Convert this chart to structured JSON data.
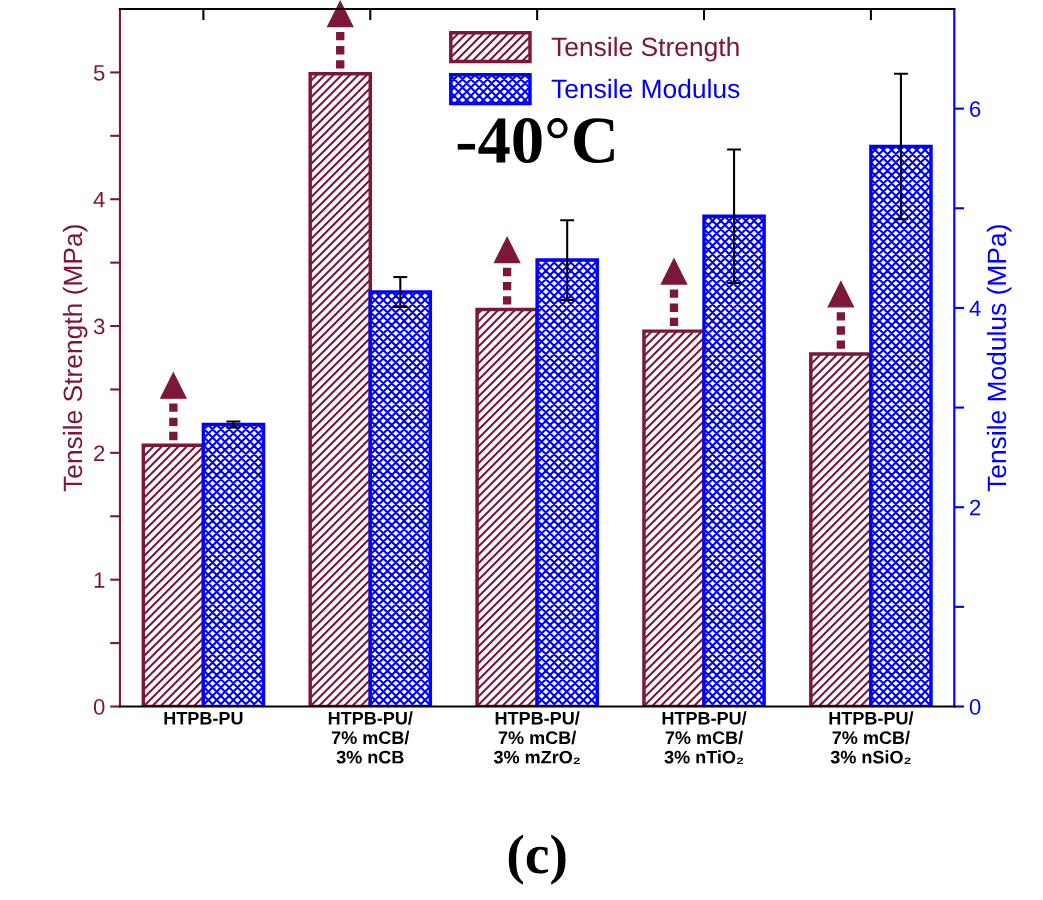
{
  "chart_data": {
    "type": "bar",
    "categories": [
      "HTPB-PU",
      "HTPB-PU/\n7% mCB/\n3% nCB",
      "HTPB-PU/\n7% mCB/\n3% mZrO₂",
      "HTPB-PU/\n7% mCB/\n3% nTiO₂",
      "HTPB-PU/\n7% mCB/\n3% nSiO₂"
    ],
    "series": [
      {
        "name": "Tensile Strength",
        "color": "#7b1838",
        "values": [
          2.06,
          4.99,
          3.13,
          2.96,
          2.78
        ]
      },
      {
        "name": "Tensile Modulus",
        "color": "#0000ff",
        "axis": "y2",
        "values": [
          2.83,
          4.16,
          4.48,
          4.92,
          5.62
        ],
        "errors": [
          0.03,
          0.15,
          0.4,
          0.67,
          0.73
        ]
      }
    ],
    "ylabel": "Tensile Strength (MPa)",
    "y2label": "Tensile Modulus (MPa)",
    "ylim": [
      0,
      5.5
    ],
    "yticks": [
      0,
      {
        "value": 0.5,
        "label": null
      },
      1,
      {
        "value": 1.5,
        "label": null
      },
      2,
      {
        "value": 2.5,
        "label": null
      },
      3,
      {
        "value": 3.5,
        "label": null
      },
      4,
      {
        "value": 4.5,
        "label": null
      },
      5
    ],
    "y2lim": [
      0,
      7
    ],
    "y2ticks": [
      0,
      {
        "value": 1,
        "label": null
      },
      2,
      {
        "value": 3,
        "label": null
      },
      4,
      {
        "value": 5,
        "label": null
      },
      6
    ],
    "annotations": [
      "-40°C",
      "(c)"
    ],
    "legend": "top",
    "grid": false
  }
}
